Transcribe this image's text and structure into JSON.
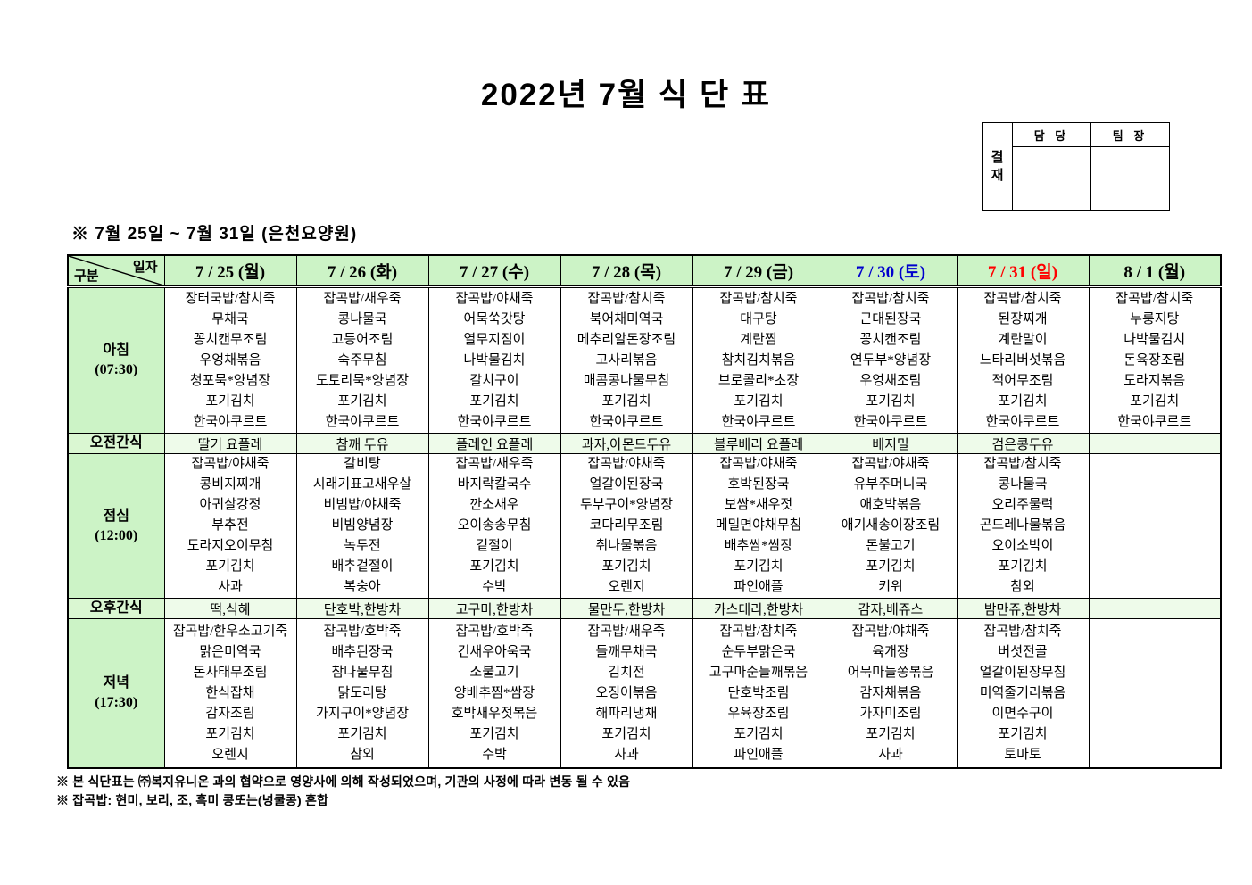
{
  "title": "2022년 7월 식 단 표",
  "subtitle": "※  7월  25일  ~  7월  31일  (은천요양원)",
  "approval": {
    "stamp_label": "결재",
    "columns": [
      "담 당",
      "팀 장"
    ]
  },
  "corner": {
    "top": "일자",
    "bottom": "구분"
  },
  "colors": {
    "header_bg": "#ccf3c6",
    "label_bg": "#ccf3c6",
    "snack_label_bg": "#daf7d2",
    "snack_cell_bg": "#eefbea",
    "saturday_text": "#0000cd",
    "sunday_text": "#ff0000",
    "weekday_text": "#000000",
    "border": "#000000"
  },
  "columns": [
    {
      "label": "7 / 25 (월)",
      "color": "#000000"
    },
    {
      "label": "7 / 26 (화)",
      "color": "#000000"
    },
    {
      "label": "7 / 27 (수)",
      "color": "#000000"
    },
    {
      "label": "7 / 28 (목)",
      "color": "#000000"
    },
    {
      "label": "7 / 29 (금)",
      "color": "#000000"
    },
    {
      "label": "7 / 30 (토)",
      "color": "#0000cd"
    },
    {
      "label": "7 / 31 (일)",
      "color": "#ff0000"
    },
    {
      "label": "8 / 1 (월)",
      "color": "#000000"
    }
  ],
  "rows": [
    {
      "id": "breakfast",
      "label_lines": [
        "아침",
        "(07:30)"
      ],
      "type": "meal",
      "cells": [
        [
          "장터국밥/참치죽",
          "무채국",
          "꽁치캔무조림",
          "우엉채볶음",
          "청포묵*양념장",
          "포기김치",
          "한국야쿠르트"
        ],
        [
          "잡곡밥/새우죽",
          "콩나물국",
          "고등어조림",
          "숙주무침",
          "도토리묵*양념장",
          "포기김치",
          "한국야쿠르트"
        ],
        [
          "잡곡밥/야채죽",
          "어묵쑥갓탕",
          "열무지짐이",
          "나박물김치",
          "갈치구이",
          "포기김치",
          "한국야쿠르트"
        ],
        [
          "잡곡밥/참치죽",
          "북어채미역국",
          "메추리알돈장조림",
          "고사리볶음",
          "매콤콩나물무침",
          "포기김치",
          "한국야쿠르트"
        ],
        [
          "잡곡밥/참치죽",
          "대구탕",
          "계란찜",
          "참치김치볶음",
          "브로콜리*초장",
          "포기김치",
          "한국야쿠르트"
        ],
        [
          "잡곡밥/참치죽",
          "근대된장국",
          "꽁치캔조림",
          "연두부*양념장",
          "우엉채조림",
          "포기김치",
          "한국야쿠르트"
        ],
        [
          "잡곡밥/참치죽",
          "된장찌개",
          "계란말이",
          "느타리버섯볶음",
          "적어무조림",
          "포기김치",
          "한국야쿠르트"
        ],
        [
          "잡곡밥/참치죽",
          "누룽지탕",
          "나박물김치",
          "돈육장조림",
          "도라지볶음",
          "포기김치",
          "한국야쿠르트"
        ]
      ]
    },
    {
      "id": "am-snack",
      "label_lines": [
        "오전간식"
      ],
      "type": "snack",
      "cells": [
        "딸기 요플레",
        "참깨 두유",
        "플레인 요플레",
        "과자,아몬드두유",
        "블루베리 요플레",
        "베지밀",
        "검은콩두유",
        ""
      ]
    },
    {
      "id": "lunch",
      "label_lines": [
        "점심",
        "(12:00)"
      ],
      "type": "meal",
      "cells": [
        [
          "잡곡밥/야채죽",
          "콩비지찌개",
          "아귀살강정",
          "부추전",
          "도라지오이무침",
          "포기김치",
          "사과"
        ],
        [
          "갈비탕",
          "시래기표고새우살",
          "비빔밥/야채죽",
          "비빔양념장",
          "녹두전",
          "배추겉절이",
          "복숭아"
        ],
        [
          "잡곡밥/새우죽",
          "바지락칼국수",
          "깐소새우",
          "오이송송무침",
          "겉절이",
          "포기김치",
          "수박"
        ],
        [
          "잡곡밥/야채죽",
          "얼갈이된장국",
          "두부구이*양념장",
          "코다리무조림",
          "취나물볶음",
          "포기김치",
          "오렌지"
        ],
        [
          "잡곡밥/야채죽",
          "호박된장국",
          "보쌈*새우젓",
          "메밀면야채무침",
          "배추쌈*쌈장",
          "포기김치",
          "파인애플"
        ],
        [
          "잡곡밥/야채죽",
          "유부주머니국",
          "애호박볶음",
          "애기새송이장조림",
          "돈불고기",
          "포기김치",
          "키위"
        ],
        [
          "잡곡밥/참치죽",
          "콩나물국",
          "오리주물럭",
          "곤드레나물볶음",
          "오이소박이",
          "포기김치",
          "참외"
        ],
        []
      ]
    },
    {
      "id": "pm-snack",
      "label_lines": [
        "오후간식"
      ],
      "type": "snack",
      "cells": [
        "떡,식혜",
        "단호박,한방차",
        "고구마,한방차",
        "물만두,한방차",
        "카스테라,한방차",
        "감자,배쥬스",
        "밤만쥬,한방차",
        ""
      ]
    },
    {
      "id": "dinner",
      "label_lines": [
        "저녁",
        "(17:30)"
      ],
      "type": "meal",
      "cells": [
        [
          "잡곡밥/한우소고기죽",
          "맑은미역국",
          "돈사태무조림",
          "한식잡채",
          "감자조림",
          "포기김치",
          "오렌지"
        ],
        [
          "잡곡밥/호박죽",
          "배추된장국",
          "참나물무침",
          "닭도리탕",
          "가지구이*양념장",
          "포기김치",
          "참외"
        ],
        [
          "잡곡밥/호박죽",
          "건새우아욱국",
          "소불고기",
          "양배추찜*쌈장",
          "호박새우젓볶음",
          "포기김치",
          "수박"
        ],
        [
          "잡곡밥/새우죽",
          "들깨무채국",
          "김치전",
          "오징어볶음",
          "해파리냉채",
          "포기김치",
          "사과"
        ],
        [
          "잡곡밥/참치죽",
          "순두부맑은국",
          "고구마순들깨볶음",
          "단호박조림",
          "우육장조림",
          "포기김치",
          "파인애플"
        ],
        [
          "잡곡밥/야채죽",
          "육개장",
          "어묵마늘쫑볶음",
          "감자채볶음",
          "가자미조림",
          "포기김치",
          "사과"
        ],
        [
          "잡곡밥/참치죽",
          "버섯전골",
          "얼갈이된장무침",
          "미역줄거리볶음",
          "이면수구이",
          "포기김치",
          "토마토"
        ],
        []
      ]
    }
  ],
  "footnotes": [
    "※ 본 식단표는 ㈜복지유니온 과의 협약으로 영양사에 의해 작성되었으며, 기관의 사정에 따라 변동 될 수 있음",
    "※ 잡곡밥: 현미, 보리, 조, 흑미 콩또는(넝쿨콩) 혼합"
  ]
}
